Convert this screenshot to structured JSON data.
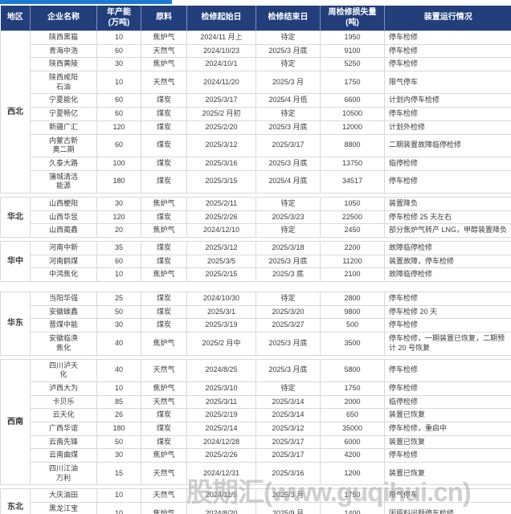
{
  "page": {
    "watermark": "股期汇(www.guqihui.cn)",
    "accent_bar_color": "#1b7ad2",
    "header_bg_color": "#223f7b"
  },
  "table": {
    "headers": [
      "地区",
      "企业名称",
      "年产能\n(万吨)",
      "原料",
      "检修起始日",
      "检修结束日",
      "周检修损失量\n(吨)",
      "装置运行情况"
    ],
    "regions": [
      {
        "name": "西北",
        "gap_after": "small",
        "rows": [
          [
            "陕西黑猫",
            "10",
            "焦炉气",
            "2024/11 月上",
            "待定",
            "1950",
            "停车检修"
          ],
          [
            "青海中浩",
            "60",
            "天然气",
            "2024/10/23",
            "2025/3 月底",
            "9100",
            "停车检修"
          ],
          [
            "陕西黄陵",
            "30",
            "焦炉气",
            "2024/10/1",
            "待定",
            "5250",
            "停车检修"
          ],
          [
            "陕西咸阳\n石油",
            "10",
            "天然气",
            "2024/11/20",
            "2025/3 月",
            "1750",
            "限气停车"
          ],
          [
            "宁夏能化",
            "60",
            "煤炭",
            "2025/3/17",
            "2025/4 月低",
            "6600",
            "计划内停车检修"
          ],
          [
            "宁夏畅亿",
            "60",
            "煤炭",
            "2025/2 月初",
            "待定",
            "10500",
            "停车检修"
          ],
          [
            "新疆广汇",
            "120",
            "煤炭",
            "2025/2/20",
            "2025/3 月底",
            "12000",
            "计划外检修"
          ],
          [
            "内蒙古新\n奥二期",
            "60",
            "煤炭",
            "2025/3/12",
            "2025/3/17",
            "8800",
            "二期装置故障临停检修"
          ],
          [
            "久泰大路",
            "100",
            "煤炭",
            "2025/3/16",
            "2025/3 月底",
            "13750",
            "临停检修"
          ],
          [
            "蒲城清洁\n能源",
            "180",
            "煤炭",
            "2025/3/15",
            "2025/4 月底",
            "34517",
            "停车检修"
          ]
        ]
      },
      {
        "name": "华北",
        "gap_after": "small",
        "rows": [
          [
            "山西梗阳",
            "30",
            "焦炉气",
            "2025/2/11",
            "待定",
            "1050",
            "装置降负"
          ],
          [
            "山西华昱",
            "120",
            "煤炭",
            "2025/2/26",
            "2025/3/23",
            "22500",
            "停车检修 25 天左右"
          ],
          [
            "山西蔺鑫",
            "20",
            "焦炉气",
            "2024/12/10",
            "待定",
            "2450",
            "部分焦炉气转产 LNG，甲醇装置降负"
          ]
        ]
      },
      {
        "name": "华中",
        "gap_after": "large",
        "rows": [
          [
            "河南中新",
            "35",
            "煤炭",
            "2025/3/12",
            "2025/3/18",
            "2200",
            "故障临停检修"
          ],
          [
            "河南鹤煤",
            "60",
            "煤炭",
            "2025/3/5",
            "2025/3 月底",
            "11200",
            "装置故障，停车检修"
          ],
          [
            "中鸿焦化",
            "10",
            "焦炉气",
            "2025/2/15",
            "2025/3 底",
            "2100",
            "故障临停检修"
          ]
        ]
      },
      {
        "name": "华东",
        "gap_after": "small",
        "rows": [
          [
            "当阳华强",
            "25",
            "煤炭",
            "2024/10/30",
            "待定",
            "2800",
            "停车检修"
          ],
          [
            "安徽碳鑫",
            "50",
            "煤炭",
            "2025/3/1",
            "2025/3/20",
            "9800",
            "停车检修 20 天"
          ],
          [
            "晋煤中能",
            "30",
            "煤炭",
            "2025/3/19",
            "2025/3/27",
            "500",
            "停车检修"
          ],
          [
            "安徽临涣\n焦化",
            "40",
            "焦炉气",
            "2025/2 月中",
            "2025/3 月底",
            "3500",
            "停车检修，一期装置已恢复，二期预计 20 号恢复"
          ]
        ]
      },
      {
        "name": "西南",
        "gap_after": "small",
        "rows": [
          [
            "四川泸天\n化",
            "40",
            "天然气",
            "2024/8/25",
            "2025/3 月底",
            "5800",
            "停车检修"
          ],
          [
            "泸西大为",
            "10",
            "焦炉气",
            "2025/3/10",
            "待定",
            "1750",
            "停车检修"
          ],
          [
            "卡贝乐",
            "85",
            "天然气",
            "2025/3/11",
            "2025/3/14",
            "2000",
            "临停检修"
          ],
          [
            "云天化",
            "26",
            "煤炭",
            "2025/2/19",
            "2025/3/14",
            "650",
            "装置已恢复"
          ],
          [
            "广西华谊",
            "180",
            "煤炭",
            "2025/2/14",
            "2025/3/12",
            "35000",
            "停车检修，重启中"
          ],
          [
            "云南先锋",
            "50",
            "煤炭",
            "2024/12/28",
            "2025/3/17",
            "6000",
            "装置已恢复"
          ],
          [
            "云南曲煤",
            "30",
            "焦炉气",
            "2025/2/26",
            "2025/3/17",
            "4200",
            "停车检修"
          ],
          [
            "四川江油\n万利",
            "15",
            "天然气",
            "2024/12/31",
            "2025/3/16",
            "1200",
            "装置已恢复"
          ]
        ]
      },
      {
        "name": "东北",
        "gap_after": "none",
        "rows": [
          [
            "大庆油田",
            "10",
            "天然气",
            "2024/11/5",
            "2025/3 月",
            "1750",
            "限气停车"
          ],
          [
            "黑龙江宝\n泰隆",
            "10",
            "焦炉气",
            "2024/8/20",
            "2025/9 月",
            "1400",
            "因原料问题停车检修"
          ]
        ]
      }
    ]
  }
}
